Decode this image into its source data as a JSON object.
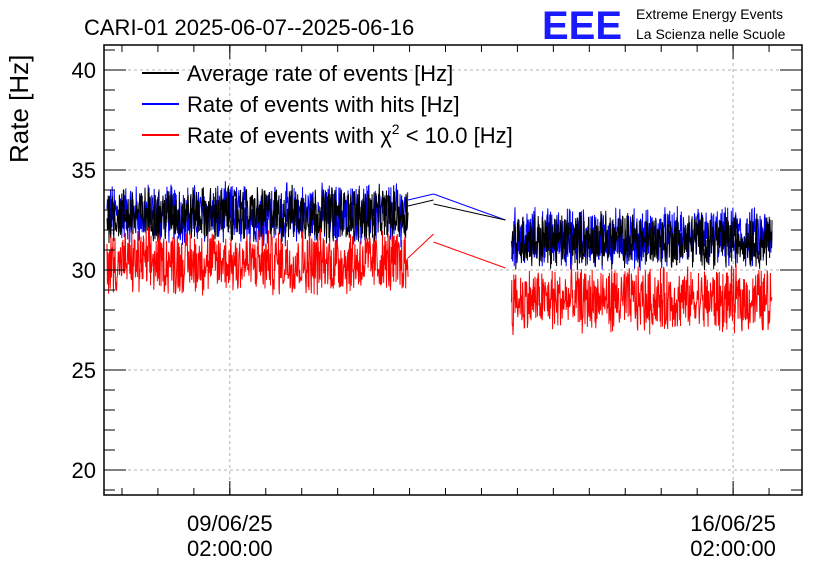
{
  "header": {
    "title": "CARI-01 2025-06-07--2025-06-16",
    "logo_text": "EEE",
    "org_line1": "Extreme Energy Events",
    "org_line2": "La Scienza nelle Scuole"
  },
  "colors": {
    "logo": "#1a1aff",
    "org_text": "#0000ff",
    "average": "#000000",
    "hits": "#0000ff",
    "chi2": "#ff0000",
    "grid": "#b0b0b0"
  },
  "chart_data": {
    "type": "line",
    "title": "CARI-01 2025-06-07--2025-06-16",
    "xlabel": "",
    "ylabel": "Rate [Hz]",
    "ylim": [
      18.75,
      41.25
    ],
    "yticks": [
      20,
      25,
      30,
      35,
      40
    ],
    "xlim": [
      "2025-06-07T08:00:00",
      "2025-06-17T01:00:00"
    ],
    "xticks": [
      {
        "x": "2025-06-09T02:00:00",
        "label_line1": "09/06/25",
        "label_line2": "02:00:00"
      },
      {
        "x": "2025-06-16T02:00:00",
        "label_line1": "16/06/25",
        "label_line2": "02:00:00"
      }
    ],
    "grid": true,
    "legend_position": "top-left",
    "legend": [
      {
        "label": "Average rate of events [Hz]",
        "color": "#000000"
      },
      {
        "label": "Rate of events with hits [Hz]",
        "color": "#0000ff"
      },
      {
        "label_prefix": "Rate of events with ",
        "label_symbol": "χ",
        "label_sup": "2",
        "label_suffix": " < 10.0 [Hz]",
        "color": "#ff0000"
      }
    ],
    "series": [
      {
        "name": "Average rate of events [Hz]",
        "color": "#000000",
        "segments": [
          {
            "x": [
              "2025-06-07T09:00:00",
              "2025-06-11T13:30:00"
            ],
            "mean": 32.8,
            "spread": 1.2
          },
          {
            "x": [
              "2025-06-11T13:30:00",
              "2025-06-11T22:00:00"
            ],
            "points": [
              [
                0,
                33.2
              ],
              [
                1,
                33.5
              ]
            ]
          },
          {
            "x": [
              "2025-06-11T22:00:00",
              "2025-06-12T22:00:00"
            ],
            "points": [
              [
                0,
                33.3
              ],
              [
                1,
                32.5
              ]
            ]
          },
          {
            "x": [
              "2025-06-13T00:00:00",
              "2025-06-16T15:00:00"
            ],
            "mean": 31.5,
            "spread": 1.2
          }
        ]
      },
      {
        "name": "Rate of events with hits [Hz]",
        "color": "#0000ff",
        "segments": [
          {
            "x": [
              "2025-06-07T09:00:00",
              "2025-06-11T13:30:00"
            ],
            "mean": 32.8,
            "spread": 1.3
          },
          {
            "x": [
              "2025-06-11T13:30:00",
              "2025-06-11T22:00:00"
            ],
            "points": [
              [
                0,
                33.5
              ],
              [
                1,
                33.8
              ]
            ]
          },
          {
            "x": [
              "2025-06-11T22:00:00",
              "2025-06-12T22:00:00"
            ],
            "points": [
              [
                0,
                33.8
              ],
              [
                1,
                32.5
              ]
            ]
          },
          {
            "x": [
              "2025-06-13T00:00:00",
              "2025-06-16T15:00:00"
            ],
            "mean": 31.6,
            "spread": 1.3
          }
        ]
      },
      {
        "name": "Rate of events with χ2 < 10.0 [Hz]",
        "color": "#ff0000",
        "segments": [
          {
            "x": [
              "2025-06-07T09:00:00",
              "2025-06-11T13:30:00"
            ],
            "mean": 30.4,
            "spread": 1.4
          },
          {
            "x": [
              "2025-06-11T13:30:00",
              "2025-06-11T22:00:00"
            ],
            "points": [
              [
                0,
                30.6
              ],
              [
                1,
                31.8
              ]
            ]
          },
          {
            "x": [
              "2025-06-11T22:00:00",
              "2025-06-12T22:00:00"
            ],
            "points": [
              [
                0,
                31.4
              ],
              [
                1,
                30.1
              ]
            ]
          },
          {
            "x": [
              "2025-06-13T00:00:00",
              "2025-06-16T15:00:00"
            ],
            "mean": 28.5,
            "spread": 1.4
          }
        ]
      }
    ]
  }
}
